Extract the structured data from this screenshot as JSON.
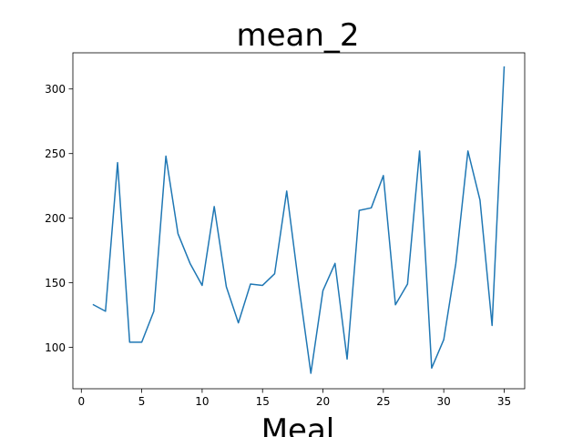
{
  "chart_data": {
    "type": "line",
    "title": "mean_2",
    "xlabel": "Meal",
    "ylabel": "",
    "xlim": [
      -0.7,
      36.7
    ],
    "ylim": [
      68,
      328
    ],
    "xticks": [
      0,
      5,
      10,
      15,
      20,
      25,
      30,
      35
    ],
    "yticks": [
      100,
      150,
      200,
      250,
      300
    ],
    "grid": false,
    "series": [
      {
        "color": "#1f77b4",
        "x": [
          1,
          2,
          3,
          4,
          5,
          6,
          7,
          8,
          9,
          10,
          11,
          12,
          13,
          14,
          15,
          16,
          17,
          18,
          19,
          20,
          21,
          22,
          23,
          24,
          25,
          26,
          27,
          28,
          29,
          30,
          31,
          32,
          33,
          34,
          35
        ],
        "y": [
          133,
          128,
          243,
          104,
          104,
          128,
          248,
          188,
          165,
          148,
          209,
          147,
          119,
          149,
          148,
          157,
          221,
          148,
          80,
          144,
          165,
          91,
          206,
          208,
          233,
          133,
          149,
          252,
          84,
          106,
          165,
          252,
          214,
          117,
          317
        ]
      }
    ]
  }
}
